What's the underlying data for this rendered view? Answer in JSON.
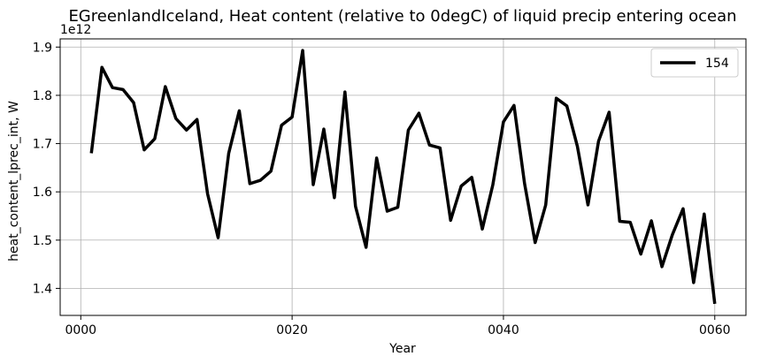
{
  "chart_data": {
    "type": "line",
    "title": "EGreenlandIceland, Heat content (relative to 0degC) of liquid precip entering ocean",
    "xlabel": "Year",
    "ylabel": "heat_content_lprec_int, W",
    "y_offset_label": "1e12",
    "xlim": [
      -1.95,
      62.95
    ],
    "ylim": [
      1.344,
      1.917
    ],
    "grid": true,
    "legend_position": "top-right",
    "xticks": [
      {
        "value": 0,
        "label": "0000"
      },
      {
        "value": 20,
        "label": "0020"
      },
      {
        "value": 40,
        "label": "0040"
      },
      {
        "value": 60,
        "label": "0060"
      }
    ],
    "yticks": [
      {
        "value": 1.4,
        "label": "1.4"
      },
      {
        "value": 1.5,
        "label": "1.5"
      },
      {
        "value": 1.6,
        "label": "1.6"
      },
      {
        "value": 1.7,
        "label": "1.7"
      },
      {
        "value": 1.8,
        "label": "1.8"
      },
      {
        "value": 1.9,
        "label": "1.9"
      }
    ],
    "series": [
      {
        "name": "154",
        "color": "#000000",
        "x": [
          1,
          2,
          3,
          4,
          5,
          6,
          7,
          8,
          9,
          10,
          11,
          12,
          13,
          14,
          15,
          16,
          17,
          18,
          19,
          20,
          21,
          22,
          23,
          24,
          25,
          26,
          27,
          28,
          29,
          30,
          31,
          32,
          33,
          34,
          35,
          36,
          37,
          38,
          39,
          40,
          41,
          42,
          43,
          44,
          45,
          46,
          47,
          48,
          49,
          50,
          51,
          52,
          53,
          54,
          55,
          56,
          57,
          58,
          59,
          60
        ],
        "values": [
          1.68,
          1.858,
          1.816,
          1.812,
          1.785,
          1.687,
          1.71,
          1.818,
          1.752,
          1.728,
          1.75,
          1.596,
          1.505,
          1.68,
          1.768,
          1.617,
          1.624,
          1.643,
          1.738,
          1.755,
          1.893,
          1.615,
          1.73,
          1.588,
          1.807,
          1.57,
          1.485,
          1.67,
          1.56,
          1.568,
          1.728,
          1.763,
          1.697,
          1.691,
          1.541,
          1.612,
          1.63,
          1.523,
          1.615,
          1.745,
          1.779,
          1.617,
          1.495,
          1.573,
          1.794,
          1.778,
          1.694,
          1.573,
          1.705,
          1.765,
          1.539,
          1.537,
          1.471,
          1.54,
          1.445,
          1.512,
          1.565,
          1.412,
          1.554,
          1.368
        ]
      }
    ]
  }
}
